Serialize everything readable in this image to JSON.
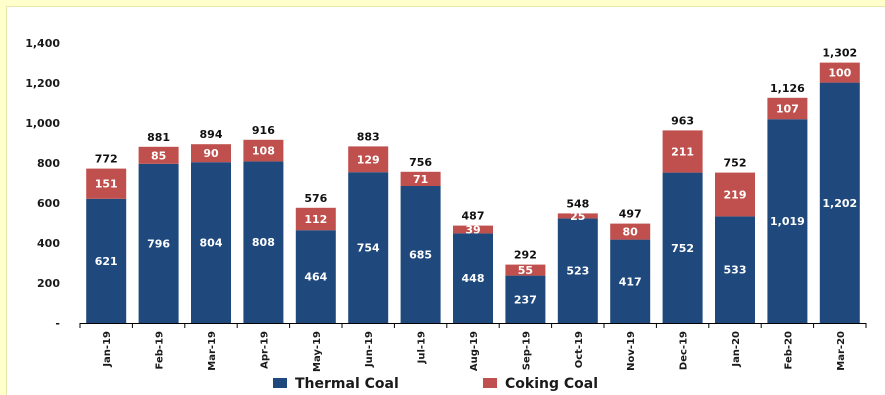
{
  "chart_data": {
    "type": "bar",
    "stacked": true,
    "categories": [
      "Jan-19",
      "Feb-19",
      "Mar-19",
      "Apr-19",
      "May-19",
      "Jun-19",
      "Jul-19",
      "Aug-19",
      "Sep-19",
      "Oct-19",
      "Nov-19",
      "Dec-19",
      "Jan-20",
      "Feb-20",
      "Mar-20"
    ],
    "series": [
      {
        "name": "Thermal Coal",
        "color": "#1f497d",
        "values": [
          "621",
          "796",
          "804",
          "808",
          "464",
          "754",
          "685",
          "448",
          "237",
          "523",
          "417",
          "752",
          "533",
          "1,019",
          "1,202"
        ]
      },
      {
        "name": "Coking Coal",
        "color": "#c0504d",
        "values": [
          "151",
          "85",
          "90",
          "108",
          "112",
          "129",
          "71",
          "39",
          "55",
          "25",
          "80",
          "211",
          "219",
          "107",
          "100"
        ]
      }
    ],
    "totals": [
      "772",
      "881",
      "894",
      "916",
      "576",
      "883",
      "756",
      "487",
      "292",
      "548",
      "497",
      "963",
      "752",
      "1,126",
      "1,302"
    ],
    "yticks": [
      "-",
      "200",
      "400",
      "600",
      "800",
      "1,000",
      "1,200",
      "1,400"
    ],
    "ylim": [
      0,
      1400
    ],
    "legend_position": "bottom",
    "grid": false
  }
}
